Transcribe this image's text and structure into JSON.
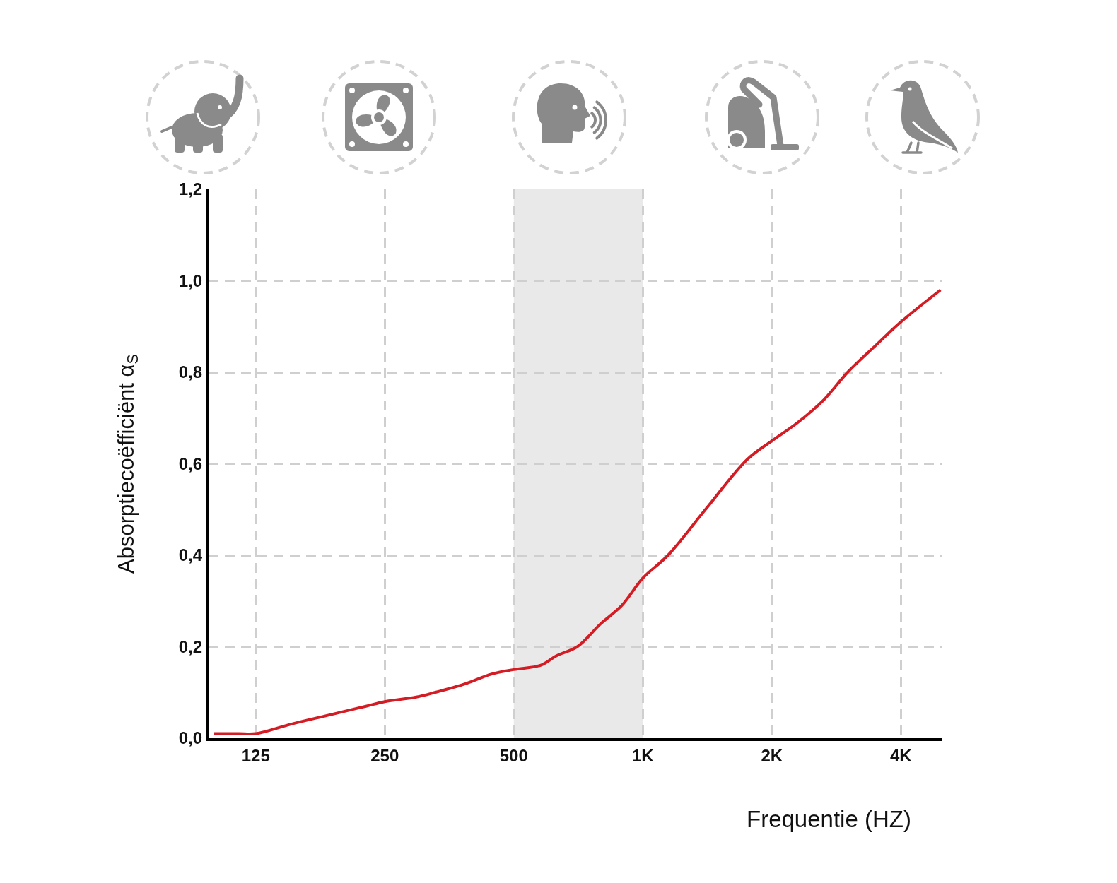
{
  "chart_data": {
    "type": "line",
    "ylabel": "Absorptiecoëfficiënt α$_{S}$",
    "xlabel": "Frequentie (HZ)",
    "log": "x",
    "x": [
      100,
      114,
      125,
      150,
      184,
      226,
      250,
      296,
      327,
      388,
      443,
      500,
      580,
      628,
      703,
      797,
      893,
      1000,
      1145,
      1400,
      1755,
      2000,
      2297,
      2646,
      3005,
      3507,
      4000,
      4950
    ],
    "series": [
      {
        "color": "#d41c24",
        "values": [
          0.01,
          0.01,
          0.01,
          0.03,
          0.05,
          0.07,
          0.08,
          0.09,
          0.1,
          0.12,
          0.14,
          0.15,
          0.16,
          0.18,
          0.2,
          0.25,
          0.29,
          0.35,
          0.4,
          0.5,
          0.61,
          0.65,
          0.69,
          0.74,
          0.8,
          0.86,
          0.91,
          0.98
        ]
      }
    ],
    "xlim": [
      97,
      5000
    ],
    "xticks": [
      125,
      250,
      500,
      {
        "value": 1000,
        "label": "1K"
      },
      {
        "value": 2000,
        "label": "2K"
      },
      {
        "value": 4000,
        "label": "4K"
      }
    ],
    "ylim": [
      0,
      1.2
    ],
    "yticks": [
      {
        "value": 0,
        "label": "0,0"
      },
      {
        "value": 0.2,
        "label": "0,2"
      },
      {
        "value": 0.4,
        "label": "0,4"
      },
      {
        "value": 0.6,
        "label": "0,6"
      },
      {
        "value": 0.8,
        "label": "0,8"
      },
      {
        "value": 1.0,
        "label": "1,0"
      },
      {
        "value": 1.2,
        "label": "1,2"
      }
    ],
    "grid": true,
    "bands": [
      {
        "axis": "x",
        "from": 500,
        "to": 1000,
        "color": "#e9e9e9"
      }
    ]
  }
}
